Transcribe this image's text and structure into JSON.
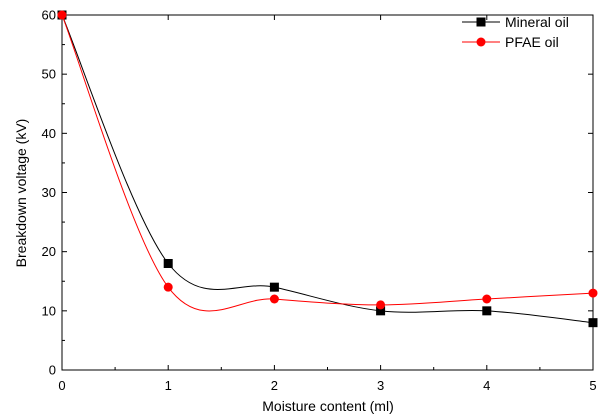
{
  "chart_data": {
    "type": "line",
    "title": "",
    "xlabel": "Moisture content (ml)",
    "ylabel": "Breakdown voltage (kV)",
    "xlim": [
      0,
      5
    ],
    "ylim": [
      0,
      60
    ],
    "x_ticks": [
      0,
      1,
      2,
      3,
      4,
      5
    ],
    "y_ticks": [
      0,
      10,
      20,
      30,
      40,
      50,
      60
    ],
    "grid": false,
    "legend_position": "top-right",
    "x": [
      0,
      1,
      2,
      3,
      4,
      5
    ],
    "series": [
      {
        "name": "Mineral oil",
        "values": [
          60,
          18,
          14,
          10,
          10,
          8
        ],
        "color": "#000000",
        "marker": "square"
      },
      {
        "name": "PFAE oil",
        "values": [
          60,
          14,
          12,
          11,
          12,
          13
        ],
        "color": "#ff0000",
        "marker": "circle"
      }
    ]
  }
}
